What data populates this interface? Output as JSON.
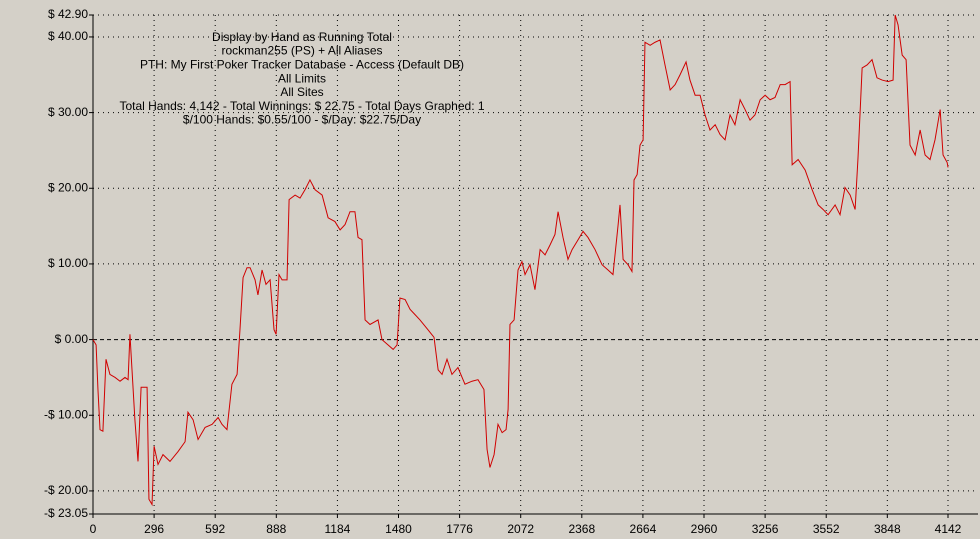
{
  "chart_data": {
    "type": "line",
    "title": "Display by Hand as Running Total",
    "subtitle": [
      "rockman255 (PS) + All Aliases",
      "PTH: My First Poker Tracker Database - Access (Default DB)",
      "All Limits",
      "All Sites",
      "Total Hands: 4,142 - Total Winnings: $ 22.75 - Total Days Graphed: 1",
      "$/100 Hands: $0.55/100 - $/Day: $22.75/Day"
    ],
    "x": [
      0,
      15,
      24,
      34,
      48,
      63,
      82,
      107,
      131,
      155,
      170,
      179,
      189,
      203,
      218,
      233,
      262,
      271,
      286,
      296,
      315,
      339,
      373,
      412,
      446,
      460,
      485,
      509,
      543,
      577,
      606,
      625,
      649,
      673,
      698,
      712,
      727,
      746,
      761,
      785,
      799,
      819,
      838,
      858,
      877,
      887,
      901,
      916,
      940,
      950,
      979,
      1003,
      1027,
      1051,
      1076,
      1110,
      1139,
      1172,
      1197,
      1221,
      1245,
      1269,
      1284,
      1303,
      1318,
      1342,
      1381,
      1400,
      1429,
      1454,
      1473,
      1487,
      1512,
      1536,
      1560,
      1584,
      1623,
      1652,
      1672,
      1691,
      1715,
      1739,
      1768,
      1802,
      1836,
      1865,
      1894,
      1909,
      1923,
      1943,
      1962,
      1982,
      2001,
      2011,
      2020,
      2040,
      2059,
      2078,
      2093,
      2117,
      2141,
      2166,
      2190,
      2214,
      2238,
      2253,
      2277,
      2301,
      2321,
      2350,
      2374,
      2398,
      2432,
      2466,
      2495,
      2519,
      2544,
      2553,
      2568,
      2592,
      2611,
      2621,
      2636,
      2650,
      2665,
      2674,
      2699,
      2723,
      2747,
      2771,
      2796,
      2820,
      2844,
      2873,
      2892,
      2917,
      2941,
      2965,
      2989,
      3014,
      3038,
      3062,
      3086,
      3110,
      3135,
      3159,
      3183,
      3207,
      3232,
      3256,
      3280,
      3304,
      3329,
      3353,
      3377,
      3387,
      3416,
      3450,
      3484,
      3513,
      3537,
      3561,
      3595,
      3619,
      3643,
      3668,
      3692,
      3706,
      3726,
      3750,
      3774,
      3798,
      3823,
      3852,
      3876,
      3886,
      3900,
      3920,
      3939,
      3958,
      3983,
      4007,
      4031,
      4055,
      4079,
      4104,
      4118,
      4138,
      4142
    ],
    "series": [
      {
        "color": "#d00000",
        "values": [
          0,
          -0.7,
          -6.6,
          -11.9,
          -12.1,
          -2.6,
          -4.6,
          -5.0,
          -5.5,
          -5.0,
          -5.3,
          0.7,
          -4.0,
          -10.6,
          -16.1,
          -6.3,
          -6.3,
          -21.1,
          -21.8,
          -14.1,
          -16.5,
          -15.2,
          -16.1,
          -14.8,
          -13.5,
          -9.6,
          -10.6,
          -13.2,
          -11.6,
          -11.2,
          -10.3,
          -11.2,
          -11.9,
          -5.9,
          -4.6,
          1.3,
          8.2,
          9.5,
          9.5,
          7.9,
          5.9,
          9.2,
          7.3,
          7.9,
          1.3,
          0.7,
          8.6,
          7.9,
          7.9,
          18.5,
          19.1,
          18.7,
          19.8,
          21.1,
          19.8,
          19.1,
          16.1,
          15.6,
          14.5,
          15.2,
          16.9,
          16.9,
          13.5,
          13.2,
          2.6,
          2.0,
          2.6,
          0,
          -0.7,
          -1.3,
          -0.7,
          5.5,
          5.3,
          4.0,
          3.3,
          2.6,
          1.3,
          0.3,
          -4.0,
          -4.6,
          -2.6,
          -4.6,
          -3.7,
          -5.9,
          -5.5,
          -5.3,
          -6.6,
          -14.5,
          -16.9,
          -15.2,
          -11.2,
          -12.3,
          -11.9,
          -9.2,
          2.0,
          2.6,
          9.2,
          10.3,
          8.6,
          9.9,
          6.6,
          11.9,
          11.2,
          12.5,
          13.9,
          16.9,
          13.5,
          10.6,
          11.9,
          13.2,
          14.3,
          13.5,
          11.9,
          9.9,
          9.2,
          8.6,
          15.2,
          17.8,
          10.6,
          9.9,
          9.0,
          21.1,
          21.8,
          25.7,
          26.4,
          39.3,
          38.9,
          39.3,
          39.6,
          36.3,
          33.0,
          33.7,
          35.0,
          36.7,
          34.3,
          32.3,
          32.3,
          29.7,
          27.7,
          28.4,
          27.1,
          26.4,
          29.7,
          28.4,
          31.7,
          30.4,
          29.0,
          29.7,
          31.7,
          32.3,
          31.7,
          32.0,
          33.7,
          33.7,
          34.1,
          23.1,
          23.8,
          22.4,
          19.8,
          17.8,
          17.2,
          16.5,
          17.8,
          16.5,
          20.1,
          19.1,
          17.2,
          24.0,
          35.9,
          36.3,
          37.0,
          34.6,
          34.3,
          34.1,
          34.3,
          42.9,
          41.6,
          37.6,
          37.0,
          25.7,
          24.4,
          27.7,
          24.4,
          23.8,
          26.4,
          30.4,
          24.4,
          23.4,
          22.75
        ]
      }
    ],
    "xlim": [
      0,
      4142
    ],
    "xticks": [
      0,
      296,
      592,
      888,
      1184,
      1480,
      1776,
      2072,
      2368,
      2664,
      2960,
      3256,
      3552,
      3848,
      4142
    ],
    "ylim": [
      -23.05,
      42.9
    ],
    "yticks": [
      {
        "value": 42.9,
        "label": "$ 42.90"
      },
      {
        "value": 40,
        "label": "$ 40.00"
      },
      {
        "value": 30,
        "label": "$ 30.00"
      },
      {
        "value": 20,
        "label": "$ 20.00"
      },
      {
        "value": 10,
        "label": "$ 10.00"
      },
      {
        "value": 0,
        "label": "$ 0.00"
      },
      {
        "value": -10,
        "label": "-$ 10.00"
      },
      {
        "value": -20,
        "label": "-$ 20.00"
      },
      {
        "value": -23.05,
        "label": "-$ 23.05"
      }
    ],
    "grid": true
  }
}
